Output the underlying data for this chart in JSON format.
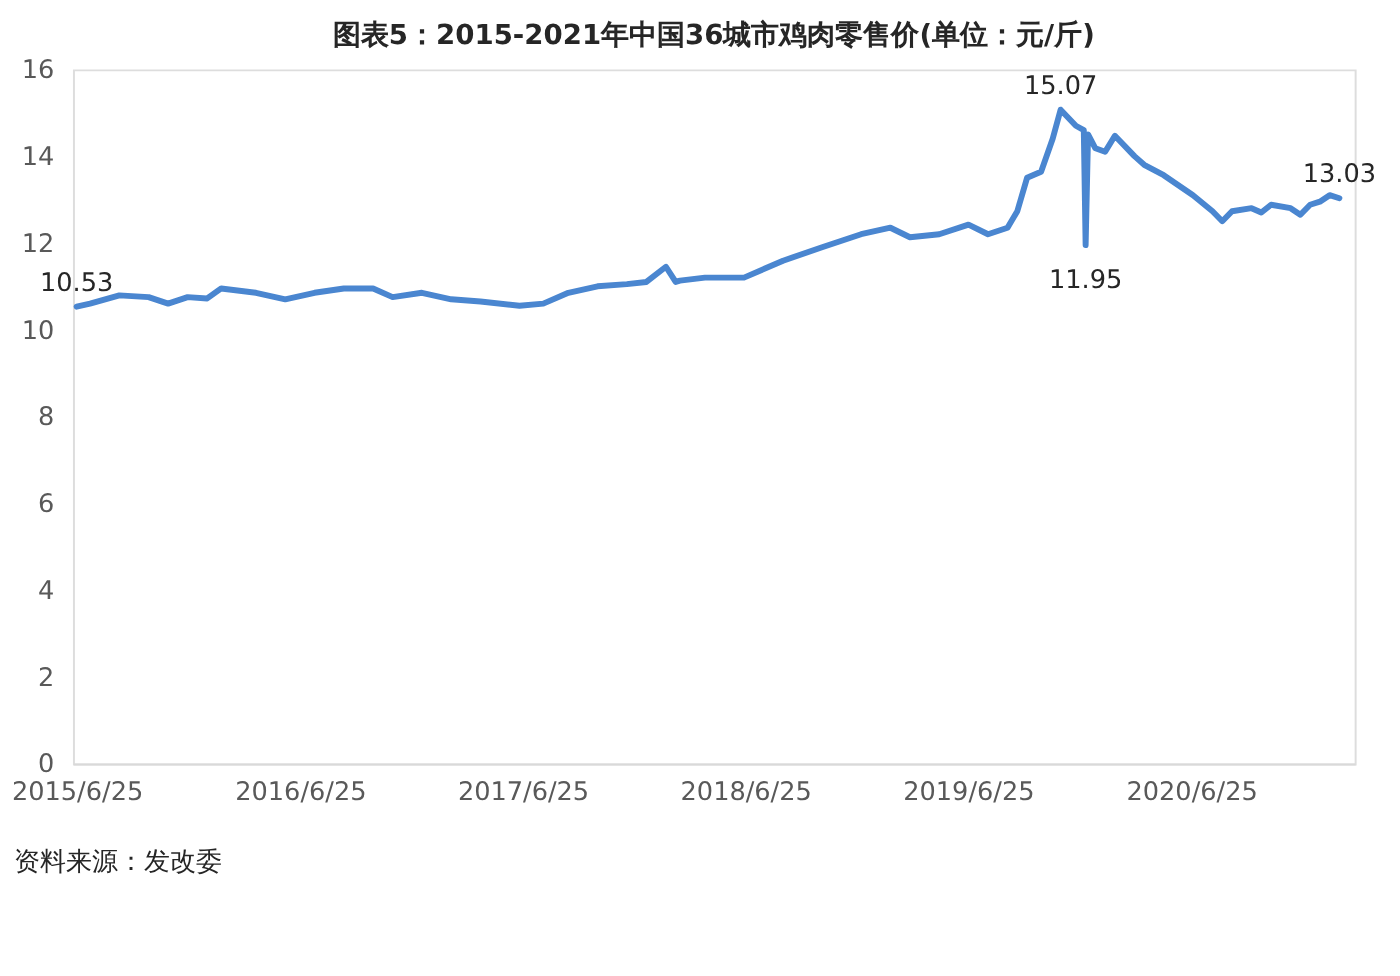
{
  "chart_data": {
    "type": "line",
    "title": "图表5：2015-2021年中国36城市鸡肉零售价(单位：元/斤)",
    "annotations": [
      "资料来源：发改委"
    ],
    "x": [
      "2015-06-25",
      "2015-07-17",
      "2015-09-03",
      "2015-10-21",
      "2015-11-22",
      "2015-12-24",
      "2016-01-25",
      "2016-02-17",
      "2016-04-14",
      "2016-06-01",
      "2016-07-19",
      "2016-09-05",
      "2016-10-23",
      "2016-11-24",
      "2017-01-11",
      "2017-02-28",
      "2017-04-17",
      "2017-06-20",
      "2017-07-29",
      "2017-09-08",
      "2017-10-26",
      "2017-12-13",
      "2018-01-14",
      "2018-02-15",
      "2018-03-03",
      "2018-03-10",
      "2018-04-20",
      "2018-06-23",
      "2018-08-26",
      "2018-10-29",
      "2019-01-01",
      "2019-02-18",
      "2019-03-22",
      "2019-05-09",
      "2019-06-26",
      "2019-07-28",
      "2019-08-29",
      "2019-09-14",
      "2019-09-30",
      "2019-10-23",
      "2019-11-11",
      "2019-11-24",
      "2019-12-19",
      "2020-01-01",
      "2020-01-04",
      "2020-01-08",
      "2020-01-20",
      "2020-02-05",
      "2020-02-21",
      "2020-03-24",
      "2020-04-09",
      "2020-05-11",
      "2020-06-28",
      "2020-07-30",
      "2020-08-15",
      "2020-08-31",
      "2020-10-02",
      "2020-10-18",
      "2020-11-03",
      "2020-12-05",
      "2020-12-21",
      "2021-01-06",
      "2021-01-22",
      "2021-02-07",
      "2021-02-23"
    ],
    "series": [
      {
        "color": "#4a86d0",
        "values": [
          10.53,
          10.6,
          10.79,
          10.75,
          10.6,
          10.75,
          10.72,
          10.95,
          10.85,
          10.7,
          10.85,
          10.95,
          10.95,
          10.75,
          10.85,
          10.7,
          10.65,
          10.55,
          10.6,
          10.85,
          11.0,
          11.05,
          11.1,
          11.45,
          11.1,
          11.13,
          11.2,
          11.2,
          11.59,
          11.9,
          12.2,
          12.35,
          12.13,
          12.2,
          12.42,
          12.2,
          12.35,
          12.73,
          13.5,
          13.64,
          14.4,
          15.07,
          14.7,
          14.6,
          11.95,
          14.5,
          14.18,
          14.1,
          14.47,
          14.0,
          13.8,
          13.56,
          13.1,
          12.73,
          12.5,
          12.73,
          12.8,
          12.7,
          12.88,
          12.8,
          12.65,
          12.88,
          12.95,
          13.1,
          13.03
        ],
        "value_labels": [
          "10.53",
          null,
          null,
          null,
          null,
          null,
          null,
          null,
          null,
          null,
          null,
          null,
          null,
          null,
          null,
          null,
          null,
          null,
          null,
          null,
          null,
          null,
          null,
          null,
          null,
          null,
          null,
          null,
          null,
          null,
          null,
          null,
          null,
          null,
          null,
          null,
          null,
          null,
          null,
          null,
          null,
          "15.07",
          null,
          null,
          "11.95",
          null,
          null,
          null,
          null,
          null,
          null,
          null,
          null,
          null,
          null,
          null,
          null,
          null,
          null,
          null,
          null,
          null,
          null,
          null,
          "13.03"
        ]
      }
    ],
    "xlim": [
      "2015-06-19",
      "2021-03-20"
    ],
    "xticks": [
      {
        "value": "2015-06-25",
        "label": "2015/6/25"
      },
      {
        "value": "2016-06-25",
        "label": "2016/6/25"
      },
      {
        "value": "2017-06-25",
        "label": "2017/6/25"
      },
      {
        "value": "2018-06-25",
        "label": "2018/6/25"
      },
      {
        "value": "2019-06-25",
        "label": "2019/6/25"
      },
      {
        "value": "2020-06-25",
        "label": "2020/6/25"
      }
    ],
    "ylim": [
      0,
      16
    ],
    "yticks": [
      0,
      2,
      4,
      6,
      8,
      10,
      12,
      14,
      16
    ],
    "grid": false,
    "legend": false,
    "line_style": "solid",
    "marker": "none"
  }
}
